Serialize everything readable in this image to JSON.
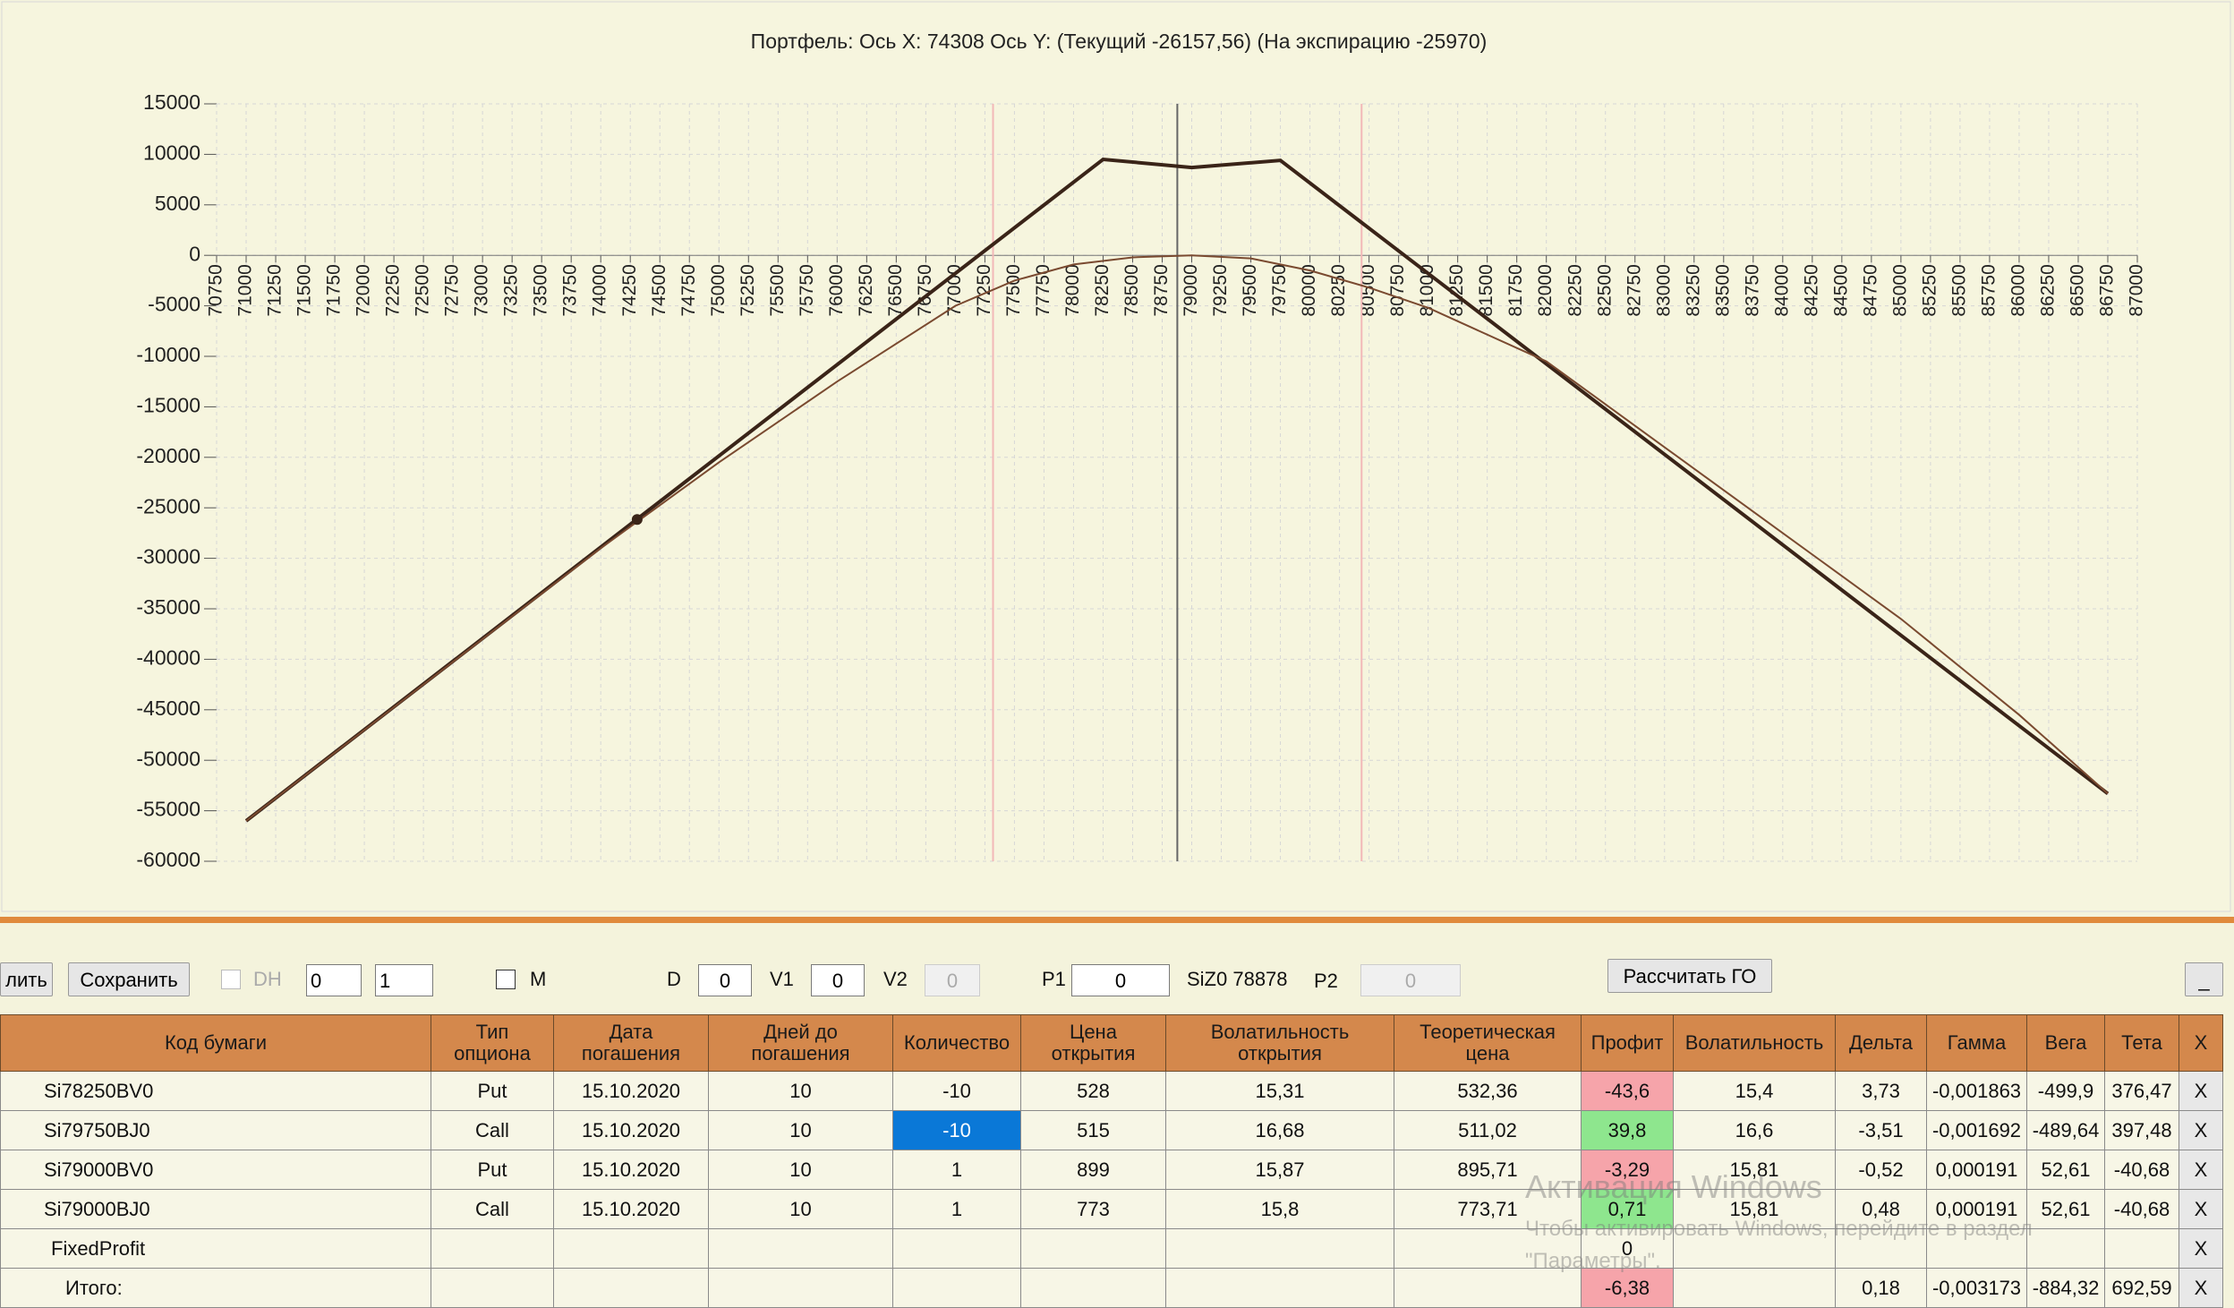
{
  "chart_data": {
    "type": "line",
    "title": "Портфель: Ось X: 74308 Ось Y:  (Текущий -26157,56)  (На экспирацию -25970)",
    "xlim": [
      70750,
      87000
    ],
    "xticks": [
      70750,
      71000,
      71250,
      71500,
      71750,
      72000,
      72250,
      72500,
      72750,
      73000,
      73250,
      73500,
      73750,
      74000,
      74250,
      74500,
      74750,
      75000,
      75250,
      75500,
      75750,
      76000,
      76250,
      76500,
      76750,
      77000,
      77250,
      77500,
      77750,
      78000,
      78250,
      78500,
      78750,
      79000,
      79250,
      79500,
      79750,
      80000,
      80250,
      80500,
      80750,
      81000,
      81250,
      81500,
      81750,
      82000,
      82250,
      82500,
      82750,
      83000,
      83250,
      83500,
      83750,
      84000,
      84250,
      84500,
      84750,
      85000,
      85250,
      85500,
      85750,
      86000,
      86250,
      86500,
      86750,
      87000
    ],
    "ylim": [
      -60000,
      15000
    ],
    "yticks": [
      15000,
      10000,
      5000,
      0,
      -5000,
      -10000,
      -15000,
      -20000,
      -25000,
      -30000,
      -35000,
      -40000,
      -45000,
      -50000,
      -55000,
      -60000
    ],
    "grid": true,
    "series": [
      {
        "color": "#3a2418",
        "width": 4,
        "x": [
          71000,
          78250,
          79000,
          79750,
          86750
        ],
        "values": [
          -56000,
          9500,
          8700,
          9400,
          -53300
        ]
      },
      {
        "color": "#7a4a30",
        "width": 2,
        "x": [
          71000,
          72000,
          73000,
          74000,
          75000,
          76000,
          77000,
          77500,
          78000,
          78500,
          79000,
          79500,
          80000,
          80500,
          81000,
          82000,
          83000,
          84000,
          85000,
          86000,
          86750
        ],
        "values": [
          -56000,
          -47000,
          -38000,
          -29000,
          -20500,
          -12500,
          -5000,
          -2500,
          -900,
          -200,
          0,
          -300,
          -1500,
          -3200,
          -5200,
          -10500,
          -19000,
          -27500,
          -36000,
          -45500,
          -53300
        ]
      }
    ],
    "vlines": [
      {
        "x": 78878,
        "color": "#666666"
      },
      {
        "x": 77319,
        "color": "#f2b8b8"
      },
      {
        "x": 80437,
        "color": "#f2b8b8"
      }
    ],
    "point": {
      "x": 74308,
      "y": -26157.56,
      "color": "#3a2418"
    }
  },
  "toolbar": {
    "delete": "лить",
    "save": "Сохранить",
    "dh": "DH",
    "spin1": "0",
    "spin2": "1",
    "m": "M",
    "d_label": "D",
    "d": "0",
    "v1_label": "V1",
    "v1": "0",
    "v2_label": "V2",
    "v2": "0",
    "p1_label": "P1",
    "p1": "0",
    "ticker": "SiZ0 78878",
    "p2_label": "P2",
    "p2": "0",
    "calc": "Рассчитать ГО",
    "minimize": "_"
  },
  "table": {
    "header": [
      "Код бумаги",
      "Тип\nопциона",
      "Дата\nпогашения",
      "Дней до\nпогашения",
      "Количество",
      "Цена\nоткрытия",
      "Волатильность\nоткрытия",
      "Теоретическая\nцена",
      "Профит",
      "Волатильность",
      "Дельта",
      "Гамма",
      "Вега",
      "Тета",
      "X"
    ],
    "rows": [
      [
        "Si78250BV0",
        "Put",
        "15.10.2020",
        "10",
        "-10",
        "528",
        "15,31",
        "532,36",
        "-43,6",
        "15,4",
        "3,73",
        "-0,001863",
        "-499,9",
        "376,47",
        "X"
      ],
      [
        "Si79750BJ0",
        "Call",
        "15.10.2020",
        "10",
        "-10",
        "515",
        "16,68",
        "511,02",
        "39,8",
        "16,6",
        "-3,51",
        "-0,001692",
        "-489,64",
        "397,48",
        "X"
      ],
      [
        "Si79000BV0",
        "Put",
        "15.10.2020",
        "10",
        "1",
        "899",
        "15,87",
        "895,71",
        "-3,29",
        "15,81",
        "-0,52",
        "0,000191",
        "52,61",
        "-40,68",
        "X"
      ],
      [
        "Si79000BJ0",
        "Call",
        "15.10.2020",
        "10",
        "1",
        "773",
        "15,8",
        "773,71",
        "0,71",
        "15,81",
        "0,48",
        "0,000191",
        "52,61",
        "-40,68",
        "X"
      ],
      [
        "FixedProfit",
        null,
        null,
        null,
        null,
        null,
        null,
        null,
        "0",
        null,
        null,
        null,
        null,
        null,
        "X"
      ],
      [
        "Итого:",
        null,
        null,
        null,
        null,
        null,
        null,
        null,
        "-6,38",
        null,
        "0,18",
        "-0,003173",
        "-884,32",
        "692,59",
        "X"
      ]
    ]
  },
  "watermark": {
    "title": "Активация Windows",
    "text": "Чтобы активировать Windows, перейдите в раздел \"Параметры\"."
  }
}
